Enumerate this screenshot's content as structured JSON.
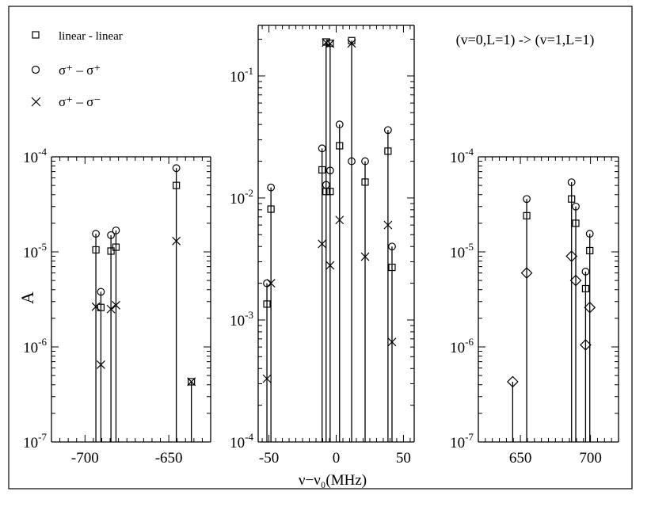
{
  "chart_data": {
    "type": "scatter",
    "title": "(v=0,L=1) -> (v=1,L=1)",
    "ylabel": "A",
    "xlabel": "ν−ν₀(MHz)",
    "legend": [
      {
        "label": "linear - linear",
        "marker": "square"
      },
      {
        "label": "σ⁺ – σ⁺",
        "marker": "circle"
      },
      {
        "label": "σ⁺ – σ⁻",
        "marker": "cross"
      }
    ],
    "panels": [
      {
        "name": "left",
        "xlim": [
          -720,
          -625
        ],
        "ylim": [
          1e-07,
          0.0001
        ],
        "yscale": "log",
        "xticks": [
          -700,
          -650
        ],
        "xtick_labels": [
          "-700",
          "-650"
        ],
        "ytick_labels": [
          "10-7",
          "10-6",
          "10-5",
          "10-4"
        ],
        "stems": [
          {
            "x": -693.5,
            "markers": [
              {
                "m": "circle",
                "y": 1.55e-05
              },
              {
                "m": "square",
                "y": 1.05e-05
              },
              {
                "m": "cross",
                "y": 2.65e-06
              }
            ]
          },
          {
            "x": -690.5,
            "markers": [
              {
                "m": "circle",
                "y": 3.8e-06
              },
              {
                "m": "square",
                "y": 2.6e-06
              },
              {
                "m": "cross",
                "y": 6.5e-07
              }
            ]
          },
          {
            "x": -684.5,
            "markers": [
              {
                "m": "circle",
                "y": 1.5e-05
              },
              {
                "m": "square",
                "y": 1.02e-05
              },
              {
                "m": "cross",
                "y": 2.5e-06
              }
            ]
          },
          {
            "x": -681.5,
            "markers": [
              {
                "m": "circle",
                "y": 1.68e-05
              },
              {
                "m": "square",
                "y": 1.12e-05
              },
              {
                "m": "cross",
                "y": 2.75e-06
              }
            ]
          },
          {
            "x": -645.5,
            "markers": [
              {
                "m": "circle",
                "y": 7.6e-05
              },
              {
                "m": "square",
                "y": 5e-05
              },
              {
                "m": "cross",
                "y": 1.3e-05
              }
            ]
          },
          {
            "x": -636.5,
            "markers": [
              {
                "m": "square",
                "y": 4.3e-07
              },
              {
                "m": "cross",
                "y": 4.3e-07
              }
            ]
          }
        ]
      },
      {
        "name": "middle",
        "xlim": [
          -58,
          58
        ],
        "ylim": [
          0.0001,
          0.26
        ],
        "yscale": "log",
        "xticks": [
          -50,
          0,
          50
        ],
        "xtick_labels": [
          "-50",
          "0",
          "50"
        ],
        "ytick_labels": [
          "10-4",
          "10-3",
          "10-2",
          "10-1"
        ],
        "stems": [
          {
            "x": -51.5,
            "markers": [
              {
                "m": "circle",
                "y": 0.002
              },
              {
                "m": "square",
                "y": 0.00135
              },
              {
                "m": "cross",
                "y": 0.00033
              }
            ]
          },
          {
            "x": -48.5,
            "markers": [
              {
                "m": "circle",
                "y": 0.0122
              },
              {
                "m": "square",
                "y": 0.0081
              },
              {
                "m": "cross",
                "y": 0.002
              }
            ]
          },
          {
            "x": -10.5,
            "markers": [
              {
                "m": "circle",
                "y": 0.0255
              },
              {
                "m": "square",
                "y": 0.017
              },
              {
                "m": "cross",
                "y": 0.0042
              }
            ]
          },
          {
            "x": -7.5,
            "markers": [
              {
                "m": "circle",
                "y": 0.0128
              },
              {
                "m": "square",
                "y": 0.0113
              },
              {
                "m": "square",
                "y": 0.19
              },
              {
                "m": "cross",
                "y": 0.188
              }
            ]
          },
          {
            "x": -4.5,
            "markers": [
              {
                "m": "circle",
                "y": 0.0168
              },
              {
                "m": "square",
                "y": 0.0113
              },
              {
                "m": "cross",
                "y": 0.0028
              },
              {
                "m": "square",
                "y": 0.185
              },
              {
                "m": "cross",
                "y": 0.184
              }
            ]
          },
          {
            "x": 2.5,
            "markers": [
              {
                "m": "circle",
                "y": 0.04
              },
              {
                "m": "square",
                "y": 0.0268
              },
              {
                "m": "cross",
                "y": 0.0066
              }
            ]
          },
          {
            "x": 11.5,
            "markers": [
              {
                "m": "circle",
                "y": 0.02
              },
              {
                "m": "square",
                "y": 0.195
              },
              {
                "m": "cross",
                "y": 0.185
              }
            ]
          },
          {
            "x": 21.5,
            "markers": [
              {
                "m": "circle",
                "y": 0.02
              },
              {
                "m": "square",
                "y": 0.0135
              },
              {
                "m": "cross",
                "y": 0.0033
              }
            ]
          },
          {
            "x": 38.5,
            "markers": [
              {
                "m": "circle",
                "y": 0.036
              },
              {
                "m": "square",
                "y": 0.0242
              },
              {
                "m": "cross",
                "y": 0.006
              }
            ]
          },
          {
            "x": 41.5,
            "markers": [
              {
                "m": "circle",
                "y": 0.004
              },
              {
                "m": "square",
                "y": 0.0027
              },
              {
                "m": "cross",
                "y": 0.00066
              }
            ]
          }
        ]
      },
      {
        "name": "right",
        "xlim": [
          620,
          720
        ],
        "ylim": [
          1e-07,
          0.0001
        ],
        "yscale": "log",
        "xticks": [
          650,
          700
        ],
        "xtick_labels": [
          "650",
          "700"
        ],
        "ytick_labels": [
          "10-7",
          "10-6",
          "10-5",
          "10-4"
        ],
        "stems": [
          {
            "x": 644.5,
            "markers": [
              {
                "m": "diamond",
                "y": 4.3e-07
              }
            ]
          },
          {
            "x": 654.5,
            "markers": [
              {
                "m": "circle",
                "y": 3.6e-05
              },
              {
                "m": "square",
                "y": 2.4e-05
              },
              {
                "m": "diamond",
                "y": 6e-06
              }
            ]
          },
          {
            "x": 686.5,
            "markers": [
              {
                "m": "circle",
                "y": 5.4e-05
              },
              {
                "m": "square",
                "y": 3.6e-05
              },
              {
                "m": "diamond",
                "y": 9e-06
              }
            ]
          },
          {
            "x": 689.5,
            "markers": [
              {
                "m": "circle",
                "y": 3e-05
              },
              {
                "m": "square",
                "y": 2e-05
              },
              {
                "m": "diamond",
                "y": 5e-06
              }
            ]
          },
          {
            "x": 696.5,
            "markers": [
              {
                "m": "circle",
                "y": 6.2e-06
              },
              {
                "m": "square",
                "y": 4.1e-06
              },
              {
                "m": "diamond",
                "y": 1.05e-06
              }
            ]
          },
          {
            "x": 699.5,
            "markers": [
              {
                "m": "circle",
                "y": 1.55e-05
              },
              {
                "m": "square",
                "y": 1.03e-05
              },
              {
                "m": "diamond",
                "y": 2.6e-06
              }
            ]
          }
        ]
      }
    ]
  }
}
